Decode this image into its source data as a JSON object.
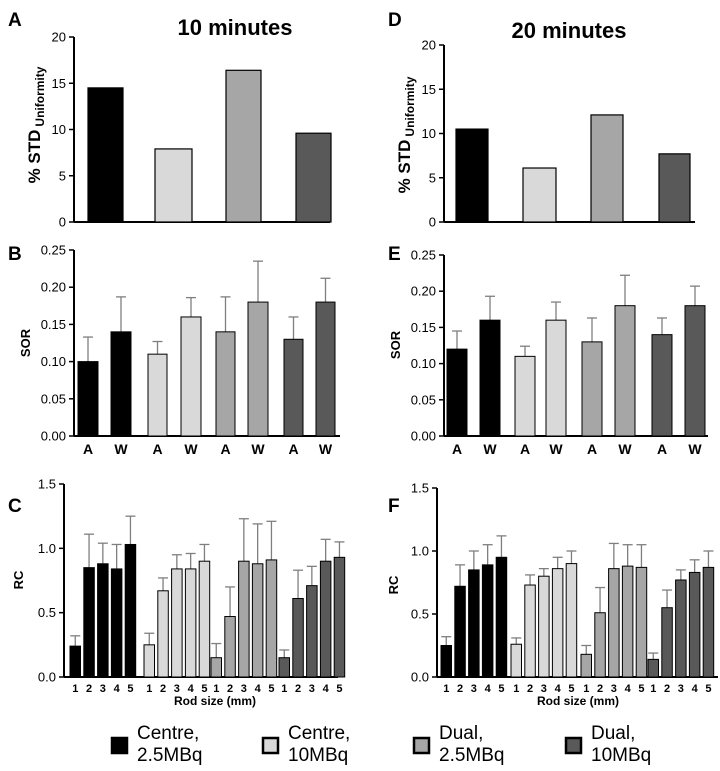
{
  "colors": {
    "centre_2_5": "#000000",
    "centre_10": "#d9d9d9",
    "dual_2_5": "#a6a6a6",
    "dual_10": "#595959",
    "axis": "#000000",
    "error_bar": "#7f7f7f"
  },
  "legend": {
    "items": [
      {
        "line1": "Centre,",
        "line2": "2.5MBq",
        "color_key": "centre_2_5"
      },
      {
        "line1": "Centre,",
        "line2": "10MBq",
        "color_key": "centre_10"
      },
      {
        "line1": "Dual,",
        "line2": "2.5MBq",
        "color_key": "dual_2_5"
      },
      {
        "line1": "Dual,",
        "line2": "10MBq",
        "color_key": "dual_10"
      }
    ]
  },
  "chart_data": [
    {
      "id": "A",
      "panel_label": "A",
      "type": "bar",
      "title": "10 minutes",
      "ylabel_main": "% STD",
      "ylabel_sub": "Uniformity",
      "ylim": [
        0,
        20
      ],
      "yticks": [
        "0",
        "5",
        "10",
        "15",
        "20"
      ],
      "categories": [
        "Centre, 2.5MBq",
        "Centre, 10MBq",
        "Dual, 2.5MBq",
        "Dual, 10MBq"
      ],
      "values": [
        14.5,
        7.9,
        16.4,
        9.6
      ]
    },
    {
      "id": "D",
      "panel_label": "D",
      "type": "bar",
      "title": "20 minutes",
      "ylabel_main": "% STD",
      "ylabel_sub": "Uniformity",
      "ylim": [
        0,
        20
      ],
      "yticks": [
        "0",
        "5",
        "10",
        "15",
        "20"
      ],
      "categories": [
        "Centre, 2.5MBq",
        "Centre, 10MBq",
        "Dual, 2.5MBq",
        "Dual, 10MBq"
      ],
      "values": [
        10.5,
        6.1,
        12.1,
        7.7
      ]
    },
    {
      "id": "B",
      "panel_label": "B",
      "type": "bar",
      "ylabel": "SOR",
      "ylim": [
        0,
        0.25
      ],
      "yticks": [
        "0.00",
        "0.05",
        "0.10",
        "0.15",
        "0.20",
        "0.25"
      ],
      "xticks": [
        "A",
        "W"
      ],
      "series": [
        {
          "name": "Centre, 2.5MBq",
          "values": [
            0.1,
            0.14
          ],
          "errors": [
            0.033,
            0.047
          ]
        },
        {
          "name": "Centre, 10MBq",
          "values": [
            0.11,
            0.16
          ],
          "errors": [
            0.017,
            0.026
          ]
        },
        {
          "name": "Dual, 2.5MBq",
          "values": [
            0.14,
            0.18
          ],
          "errors": [
            0.047,
            0.055
          ]
        },
        {
          "name": "Dual, 10MBq",
          "values": [
            0.13,
            0.18
          ],
          "errors": [
            0.03,
            0.032
          ]
        }
      ]
    },
    {
      "id": "E",
      "panel_label": "E",
      "type": "bar",
      "ylabel": "SOR",
      "ylim": [
        0,
        0.25
      ],
      "yticks": [
        "0.00",
        "0.05",
        "0.10",
        "0.15",
        "0.20",
        "0.25"
      ],
      "xticks": [
        "A",
        "W"
      ],
      "series": [
        {
          "name": "Centre, 2.5MBq",
          "values": [
            0.12,
            0.16
          ],
          "errors": [
            0.025,
            0.033
          ]
        },
        {
          "name": "Centre, 10MBq",
          "values": [
            0.11,
            0.16
          ],
          "errors": [
            0.014,
            0.025
          ]
        },
        {
          "name": "Dual, 2.5MBq",
          "values": [
            0.13,
            0.18
          ],
          "errors": [
            0.033,
            0.042
          ]
        },
        {
          "name": "Dual, 10MBq",
          "values": [
            0.14,
            0.18
          ],
          "errors": [
            0.023,
            0.027
          ]
        }
      ]
    },
    {
      "id": "C",
      "panel_label": "C",
      "type": "bar",
      "ylabel": "RC",
      "xlabel": "Rod size  (mm)",
      "ylim": [
        0,
        1.5
      ],
      "yticks": [
        "0.0",
        "0.5",
        "1.0",
        "1.5"
      ],
      "xticks": [
        "1",
        "2",
        "3",
        "4",
        "5"
      ],
      "series": [
        {
          "name": "Centre, 2.5MBq",
          "values": [
            0.24,
            0.85,
            0.88,
            0.84,
            1.03
          ],
          "errors": [
            0.08,
            0.26,
            0.16,
            0.19,
            0.22
          ]
        },
        {
          "name": "Centre, 10MBq",
          "values": [
            0.25,
            0.67,
            0.84,
            0.84,
            0.9
          ],
          "errors": [
            0.09,
            0.1,
            0.11,
            0.12,
            0.13
          ]
        },
        {
          "name": "Dual, 2.5MBq",
          "values": [
            0.15,
            0.47,
            0.9,
            0.88,
            0.91
          ],
          "errors": [
            0.11,
            0.23,
            0.33,
            0.31,
            0.3
          ]
        },
        {
          "name": "Dual, 10MBq",
          "values": [
            0.15,
            0.61,
            0.71,
            0.9,
            0.93
          ],
          "errors": [
            0.06,
            0.22,
            0.15,
            0.17,
            0.12
          ]
        }
      ]
    },
    {
      "id": "F",
      "panel_label": "F",
      "type": "bar",
      "ylabel": "RC",
      "xlabel": "Rod size  (mm)",
      "ylim": [
        0,
        1.5
      ],
      "yticks": [
        "0.0",
        "0.5",
        "1.0",
        "1.5"
      ],
      "xticks": [
        "1",
        "2",
        "3",
        "4",
        "5"
      ],
      "series": [
        {
          "name": "Centre, 2.5MBq",
          "values": [
            0.25,
            0.72,
            0.85,
            0.89,
            0.95
          ],
          "errors": [
            0.07,
            0.17,
            0.15,
            0.16,
            0.17
          ]
        },
        {
          "name": "Centre, 10MBq",
          "values": [
            0.26,
            0.73,
            0.8,
            0.86,
            0.9
          ],
          "errors": [
            0.05,
            0.08,
            0.06,
            0.09,
            0.1
          ]
        },
        {
          "name": "Dual, 2.5MBq",
          "values": [
            0.18,
            0.51,
            0.86,
            0.88,
            0.87
          ],
          "errors": [
            0.07,
            0.2,
            0.2,
            0.17,
            0.18
          ]
        },
        {
          "name": "Dual, 10MBq",
          "values": [
            0.14,
            0.55,
            0.77,
            0.83,
            0.87
          ],
          "errors": [
            0.05,
            0.14,
            0.08,
            0.1,
            0.13
          ]
        }
      ]
    }
  ]
}
